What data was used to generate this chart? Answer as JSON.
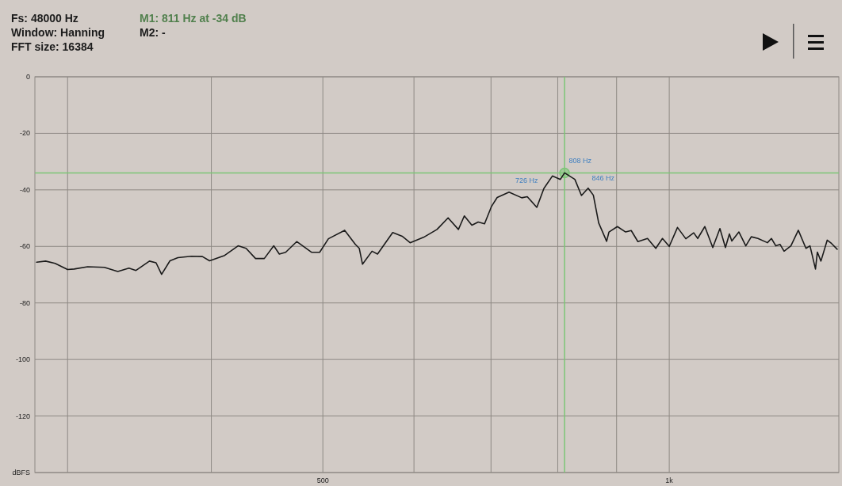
{
  "chart_data": {
    "type": "line",
    "log": "x",
    "grid": true,
    "marker": "none",
    "line_style": "solid",
    "x": [
      282,
      287.1,
      292.6,
      300,
      304,
      312.3,
      322.9,
      331.7,
      339.2,
      344,
      353.4,
      358.1,
      362.1,
      368.2,
      374.1,
      384.3,
      392.9,
      398.6,
      410.8,
      422,
      428.8,
      437,
      444.7,
      453.2,
      458.3,
      464.1,
      474.5,
      489,
      496.8,
      505.6,
      522.3,
      533.6,
      537.8,
      541.3,
      551.7,
      557.8,
      575,
      586,
      595.4,
      611.6,
      628.3,
      642.4,
      655.8,
      663.6,
      673.7,
      682.3,
      691,
      700.8,
      708.7,
      725.7,
      744.4,
      752.7,
      767.2,
      778.2,
      791.5,
      804.2,
      811,
      827.9,
      838.9,
      850.2,
      859.1,
      868.3,
      882.2,
      886.4,
      901.4,
      916.4,
      926.7,
      939.2,
      957.4,
      973.4,
      986.5,
      1000,
      1016.6,
      1033.7,
      1050.2,
      1058.6,
      1073.8,
      1091,
      1106.7,
      1119,
      1127.9,
      1133.3,
      1149.6,
      1165.5,
      1178.4,
      1194.2,
      1217.1,
      1226.8,
      1237.7,
      1248.4,
      1258.3,
      1275.6,
      1294.7,
      1314.6,
      1325.3,
      1339.9,
      1345,
      1354.6,
      1371.7,
      1383.9,
      1399.4
    ],
    "xlim": [
      281,
      1404
    ],
    "xticks": [
      {
        "value": 300,
        "label": null
      },
      {
        "value": 400,
        "label": null
      },
      500,
      {
        "value": 600,
        "label": null
      },
      {
        "value": 700,
        "label": null
      },
      {
        "value": 800,
        "label": null
      },
      {
        "value": 900,
        "label": null
      },
      {
        "value": 1000,
        "label": "1k"
      }
    ],
    "ylim": [
      -140,
      0
    ],
    "yticks": [
      {
        "value": -140,
        "label": "dBFS"
      },
      -120,
      -100,
      -80,
      -60,
      -40,
      -20,
      0
    ],
    "series": [
      {
        "color": "#1a1a1a",
        "values": [
          -65.6,
          -65.2,
          -66,
          -68.2,
          -68,
          -67.2,
          -67.4,
          -68.9,
          -67.7,
          -68.5,
          -65.2,
          -65.8,
          -69.9,
          -65.1,
          -64,
          -63.5,
          -63.6,
          -65.1,
          -63.2,
          -59.8,
          -60.7,
          -64.3,
          -64.3,
          -59.8,
          -62.7,
          -62.1,
          -58.3,
          -62.1,
          -62.1,
          -57.3,
          -54.3,
          -59.3,
          -60.7,
          -66.3,
          -61.7,
          -62.7,
          -55.1,
          -56.4,
          -58.7,
          -56.8,
          -54,
          -49.9,
          -54,
          -49.2,
          -52.5,
          -51.4,
          -52,
          -45.8,
          -42.7,
          -40.8,
          -42.8,
          -42.4,
          -46.2,
          -39.5,
          -35.1,
          -36.3,
          -34,
          -36.3,
          -42,
          -39.4,
          -41.9,
          -51.7,
          -58.2,
          -54.9,
          -53,
          -54.9,
          -54.4,
          -58.3,
          -57.2,
          -60.7,
          -57.2,
          -60,
          -53.3,
          -57.3,
          -55.2,
          -57.2,
          -53,
          -60.4,
          -53.7,
          -60.4,
          -55.6,
          -58.1,
          -54.9,
          -59.8,
          -56.6,
          -57.2,
          -58.7,
          -57.2,
          -59.8,
          -59.3,
          -61.7,
          -59.8,
          -54.3,
          -60.7,
          -59.8,
          -68,
          -62,
          -65.2,
          -57.8,
          -59,
          -61
        ]
      },
      {
        "type": "scatter",
        "marker": "circle",
        "color": "#7cc576",
        "x": [
          811
        ],
        "values": [
          -34
        ]
      }
    ],
    "ref_lines": [
      {
        "axis": "x",
        "value": 811,
        "color": "#7cc576"
      },
      {
        "axis": "y",
        "value": -34,
        "color": "#7cc576"
      }
    ],
    "annotations": [
      "Fs: 48000 Hz",
      "Window: Hanning",
      "FFT size: 16384",
      "M1: 811 Hz at -34 dB",
      "M2: -",
      {
        "text": "726 Hz",
        "x": 726,
        "y": -41
      },
      {
        "text": "808 Hz",
        "x": 808,
        "y": -34
      },
      {
        "text": "846 Hz",
        "x": 846,
        "y": -40
      }
    ]
  }
}
